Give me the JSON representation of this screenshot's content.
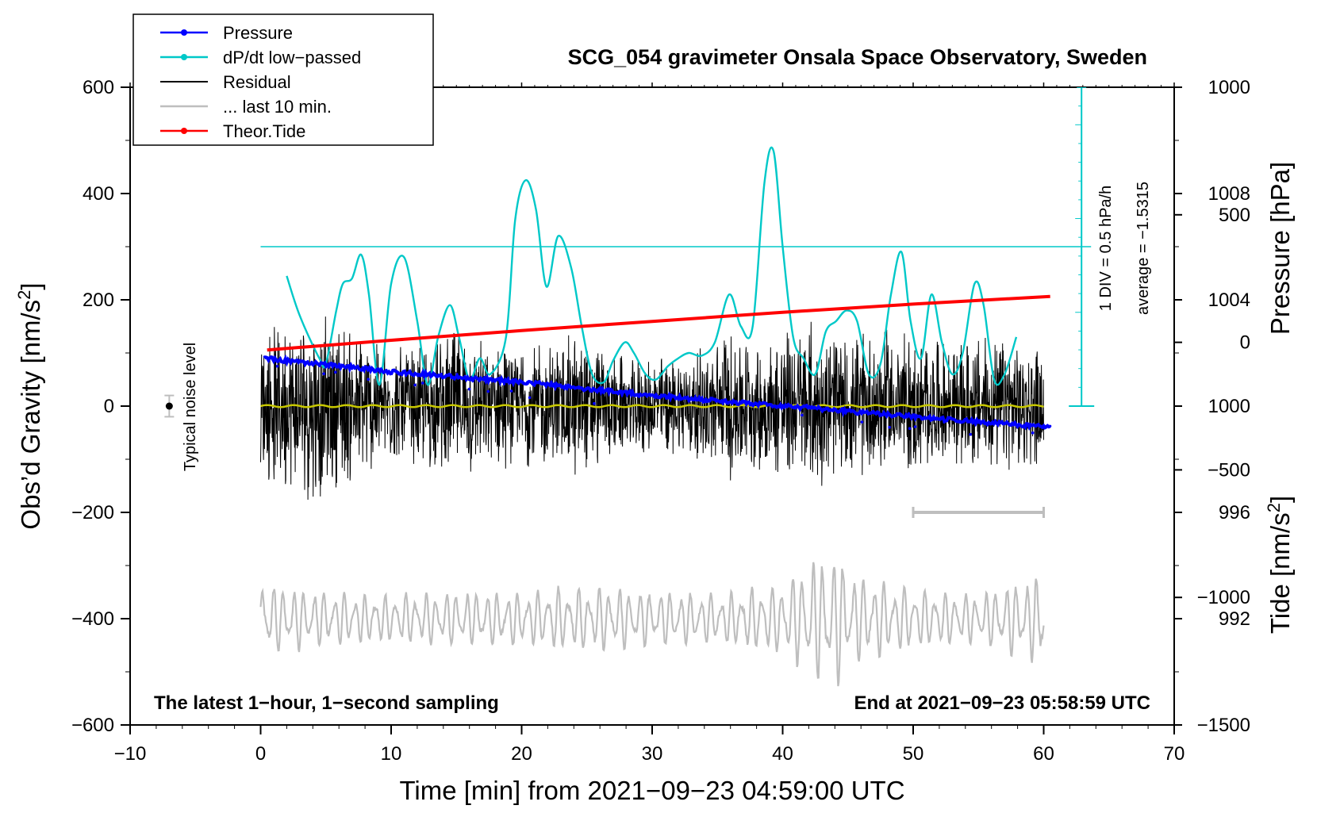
{
  "chart_data": {
    "type": "line",
    "title": "SCG_054 gravimeter Onsala Space Observatory, Sweden",
    "xlabel": "Time [min] from 2021−09−23 04:59:00 UTC",
    "ylabel_left_main": "Obs’d Gravity [nm/s",
    "ylabel_left_sup": "2",
    "ylabel_left_end": "]",
    "ylabel_right_pressure": "Pressure [hPa]",
    "ylabel_right_tide_main": "Tide [nm/s",
    "ylabel_right_tide_sup": "2",
    "ylabel_right_tide_end": "]",
    "xlim": [
      -10,
      70
    ],
    "ylim": [
      -600,
      600
    ],
    "x_ticks": [
      -10,
      0,
      10,
      20,
      30,
      40,
      50,
      60,
      70
    ],
    "x_tick_labels": [
      "−10",
      "0",
      "10",
      "20",
      "30",
      "40",
      "50",
      "60",
      "70"
    ],
    "y_ticks": [
      600,
      400,
      200,
      0,
      -200,
      -400,
      -600
    ],
    "y_tick_labels": [
      "600",
      "400",
      "200",
      "0",
      "−200",
      "−400",
      "−600"
    ],
    "pressure_axis": {
      "ticks": [
        1008,
        1004,
        1000,
        996,
        992
      ],
      "tick_labels": [
        "1008",
        "1004",
        "1000",
        "996",
        "992"
      ],
      "range": [
        988,
        1012
      ]
    },
    "tide_axis": {
      "ticks": [
        1000,
        500,
        0,
        -500,
        -1000,
        -1500
      ],
      "tick_labels": [
        "1000",
        "500",
        "0",
        "−500",
        "−1000",
        "−1500"
      ],
      "range": [
        -1500,
        1000
      ]
    },
    "dpdt_scale": {
      "label": "1 DIV = 0.5 hPa/h",
      "average_label": "average = −1.5315",
      "reference_level": 300
    },
    "noise_indicator": {
      "label": "Typical noise level",
      "x": -7,
      "y": 0,
      "half_range": 20
    },
    "last10_bar": {
      "x_start": 50,
      "x_end": 60,
      "y": -200
    },
    "legend": [
      {
        "label": "Pressure",
        "color": "#0000ff",
        "marker": true
      },
      {
        "label": "dP/dt low−passed",
        "color": "#00c8c8",
        "marker": true
      },
      {
        "label": "Residual",
        "color": "#000000",
        "marker": false
      },
      {
        "label": "... last 10 min.",
        "color": "#bebebe",
        "marker": false
      },
      {
        "label": "Theor.Tide",
        "color": "#ff0000",
        "marker": true
      }
    ],
    "note_left": "The latest 1−hour, 1−second sampling",
    "note_right": "End at 2021−09−23 05:58:59 UTC",
    "series": [
      {
        "name": "Pressure",
        "unit": "hPa",
        "color": "#0000ff",
        "x": [
          0.3,
          10,
          20,
          30,
          40,
          50,
          60.5
        ],
        "values": [
          1001.8,
          1001.3,
          1000.9,
          1000.4,
          1000.0,
          999.6,
          999.2
        ]
      },
      {
        "name": "dP/dt low-passed",
        "unit": "nm/s2 display units",
        "color": "#00c8c8",
        "x": [
          2,
          3,
          4.5,
          5,
          5.8,
          6.3,
          7,
          7.7,
          8.3,
          9.1,
          10,
          11,
          12,
          12.8,
          13.6,
          14.5,
          15.2,
          16,
          16.8,
          17.6,
          18.8,
          19.5,
          20.3,
          21.1,
          21.9,
          22.8,
          23.8,
          24.6,
          25.4,
          26.3,
          27,
          27.9,
          28.6,
          29.5,
          30.3,
          31.2,
          32,
          32.8,
          33.8,
          34.8,
          35.9,
          36.8,
          37.7,
          38.6,
          39.3,
          40,
          40.8,
          41.6,
          42.5,
          43.3,
          44.1,
          44.9,
          45.7,
          46.6,
          47.5,
          48.3,
          49.1,
          49.8,
          50.6,
          51.4,
          52.2,
          53,
          53.8,
          54.7,
          55.4,
          56.2,
          57,
          57.9
        ],
        "values": [
          245,
          170,
          90,
          80,
          180,
          230,
          240,
          285,
          210,
          40,
          230,
          280,
          160,
          40,
          130,
          190,
          130,
          50,
          90,
          60,
          130,
          350,
          425,
          370,
          225,
          320,
          260,
          150,
          60,
          45,
          85,
          120,
          100,
          60,
          50,
          75,
          90,
          100,
          95,
          120,
          210,
          150,
          150,
          420,
          480,
          300,
          130,
          90,
          60,
          140,
          160,
          180,
          160,
          60,
          80,
          210,
          290,
          160,
          90,
          210,
          120,
          60,
          100,
          230,
          190,
          50,
          60,
          130
        ]
      },
      {
        "name": "Residual",
        "unit": "nm/s2",
        "color": "#000000",
        "envelope_x": [
          0,
          3,
          6,
          9,
          12,
          15,
          18,
          21,
          24,
          27,
          30,
          33,
          36,
          39,
          42,
          45,
          48,
          51,
          54,
          57,
          60
        ],
        "envelope_amplitude": [
          140,
          185,
          165,
          120,
          110,
          150,
          120,
          115,
          140,
          100,
          95,
          105,
          150,
          125,
          165,
          130,
          150,
          125,
          120,
          140,
          110
        ]
      },
      {
        "name": "... last 10 min.",
        "unit": "nm/s2 (plotted offset −400)",
        "color": "#bebebe",
        "offset": -400,
        "envelope_x": [
          0,
          5,
          10,
          15,
          20,
          25,
          30,
          35,
          40,
          42,
          44,
          46,
          50,
          55,
          60
        ],
        "envelope_amplitude": [
          60,
          45,
          40,
          45,
          45,
          55,
          45,
          40,
          60,
          95,
          110,
          70,
          50,
          40,
          75
        ]
      },
      {
        "name": "Theor.Tide",
        "unit": "nm/s2",
        "color": "#ff0000",
        "x": [
          0.5,
          10,
          20,
          30,
          40,
          50,
          60.5
        ],
        "values": [
          -30,
          8,
          46,
          82,
          118,
          150,
          180
        ]
      },
      {
        "name": "Residual low-passed",
        "unit": "nm/s2",
        "color": "#c8c800",
        "x": [
          0,
          60
        ],
        "values": [
          0,
          0
        ]
      }
    ]
  }
}
